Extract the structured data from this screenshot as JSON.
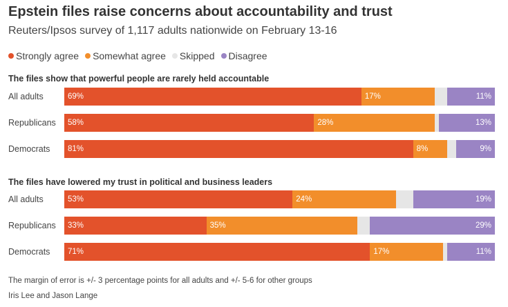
{
  "title": "Epstein files raise concerns about accountability and trust",
  "subtitle": "Reuters/Ipsos survey of 1,117 adults nationwide on February 13-16",
  "legend": [
    {
      "label": "Strongly agree",
      "color": "#e3522b"
    },
    {
      "label": "Somewhat agree",
      "color": "#f28e2b"
    },
    {
      "label": "Skipped",
      "color": "#e6e6e6"
    },
    {
      "label": "Disagree",
      "color": "#9a84c4"
    }
  ],
  "chart_data": {
    "type": "bar",
    "orientation": "horizontal",
    "stacked": true,
    "series_names": [
      "Strongly agree",
      "Somewhat agree",
      "Skipped",
      "Disagree"
    ],
    "colors": [
      "#e3522b",
      "#f28e2b",
      "#e6e6e6",
      "#9a84c4"
    ],
    "panels": [
      {
        "title": "The files show that powerful people are rarely held accountable",
        "rows": [
          {
            "label": "All adults",
            "values": [
              69,
              17,
              3,
              11
            ],
            "labels": [
              "69%",
              "17%",
              "",
              "11%"
            ]
          },
          {
            "label": "Republicans",
            "values": [
              58,
              28,
              1,
              13
            ],
            "labels": [
              "58%",
              "28%",
              "",
              "13%"
            ]
          },
          {
            "label": "Democrats",
            "values": [
              81,
              8,
              2,
              9
            ],
            "labels": [
              "81%",
              "8%",
              "",
              "9%"
            ]
          }
        ]
      },
      {
        "title": "The files have lowered my trust in political and business leaders",
        "rows": [
          {
            "label": "All adults",
            "values": [
              53,
              24,
              4,
              19
            ],
            "labels": [
              "53%",
              "24%",
              "",
              "19%"
            ]
          },
          {
            "label": "Republicans",
            "values": [
              33,
              35,
              3,
              29
            ],
            "labels": [
              "33%",
              "35%",
              "",
              "29%"
            ]
          },
          {
            "label": "Democrats",
            "values": [
              71,
              17,
              1,
              11
            ],
            "labels": [
              "71%",
              "17%",
              "",
              "11%"
            ]
          }
        ]
      }
    ]
  },
  "note": "The margin of error is +/- 3 percentage points for all adults and +/- 5-6 for other groups",
  "credit": "Iris Lee and Jason Lange"
}
